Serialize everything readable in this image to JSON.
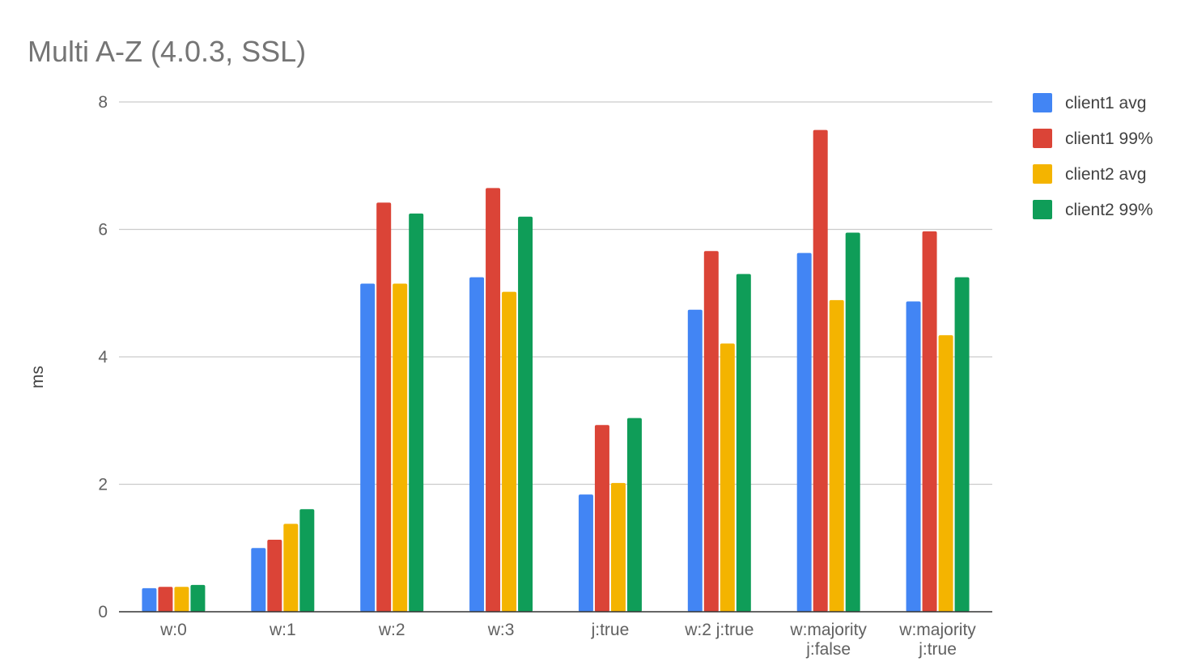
{
  "chart_data": {
    "type": "bar",
    "title": "Multi A-Z (4.0.3, SSL)",
    "xlabel": "",
    "ylabel": "ms",
    "ylim": [
      0,
      8
    ],
    "yticks": [
      0,
      2,
      4,
      6,
      8
    ],
    "grid": true,
    "legend_position": "right",
    "categories": [
      [
        "w:0"
      ],
      [
        "w:1"
      ],
      [
        "w:2"
      ],
      [
        "w:3"
      ],
      [
        "j:true"
      ],
      [
        "w:2 j:true"
      ],
      [
        "w:majority",
        "j:false"
      ],
      [
        "w:majority",
        "j:true"
      ]
    ],
    "series": [
      {
        "name": "client1 avg",
        "color": "#4285F4",
        "values": [
          0.37,
          1.0,
          5.15,
          5.25,
          1.84,
          4.74,
          5.63,
          4.87
        ]
      },
      {
        "name": "client1 99%",
        "color": "#DB4437",
        "values": [
          0.39,
          1.13,
          6.42,
          6.65,
          2.93,
          5.66,
          7.56,
          5.97
        ]
      },
      {
        "name": "client2 avg",
        "color": "#F4B400",
        "values": [
          0.39,
          1.38,
          5.15,
          5.02,
          2.02,
          4.21,
          4.89,
          4.34
        ]
      },
      {
        "name": "client2 99%",
        "color": "#0F9D58",
        "values": [
          0.42,
          1.61,
          6.25,
          6.2,
          3.04,
          5.3,
          5.95,
          5.25
        ]
      }
    ]
  }
}
